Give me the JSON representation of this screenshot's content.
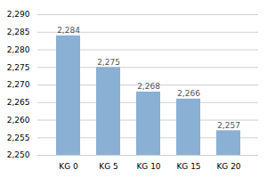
{
  "chart_data": {
    "type": "bar",
    "categories": [
      "KG 0",
      "KG 5",
      "KG 10",
      "KG 15",
      "KG 20"
    ],
    "values": [
      2284,
      2275,
      2268,
      2266,
      2257
    ],
    "value_labels": [
      "2,284",
      "2,275",
      "2,268",
      "2,266",
      "2,257"
    ],
    "data_labels": true,
    "color": "#8ab0d4",
    "ylim": [
      2250,
      2290
    ],
    "yticks": [
      {
        "value": 2250,
        "label": "2,250"
      },
      {
        "value": 2255,
        "label": "2,255"
      },
      {
        "value": 2260,
        "label": "2,260"
      },
      {
        "value": 2265,
        "label": "2,265"
      },
      {
        "value": 2270,
        "label": "2,270"
      },
      {
        "value": 2275,
        "label": "2,275"
      },
      {
        "value": 2280,
        "label": "2,280"
      },
      {
        "value": 2285,
        "label": "2,285"
      },
      {
        "value": 2290,
        "label": "2,290"
      }
    ],
    "grid": true
  }
}
